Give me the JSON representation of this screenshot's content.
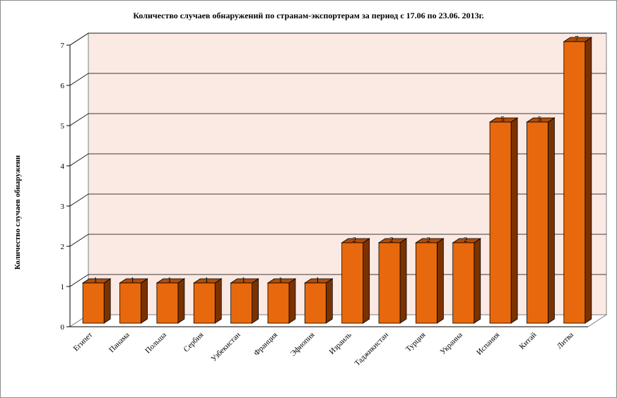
{
  "chart_data": {
    "type": "bar",
    "title": "Количество случаев обнаружений по странам-экспортерам за период с 17.06 по 23.06. 2013г.",
    "ylabel": "Количество случаев обнаружени",
    "xlabel": "",
    "categories": [
      "Египет",
      "Панама",
      "Польша",
      "Сербия",
      "Узбекистан",
      "Франция",
      "Эфиопия",
      "Израиль",
      "Таджикистан",
      "Турция",
      "Украина",
      "Испания",
      "Китай",
      "Литва"
    ],
    "values": [
      1,
      1,
      1,
      1,
      1,
      1,
      1,
      2,
      2,
      2,
      2,
      5,
      5,
      7
    ],
    "ylim": [
      0,
      7
    ],
    "yticks": [
      0,
      1,
      2,
      3,
      4,
      5,
      6,
      7
    ],
    "grid": true,
    "legend": "none",
    "bar_style": "3d",
    "colors": {
      "bar_front": "#e8690d",
      "bar_side": "#7a3200",
      "bar_top": "#b04c08",
      "back_wall": "#fbe9e3",
      "floor": "#ffffff",
      "grid": "#000000"
    }
  }
}
